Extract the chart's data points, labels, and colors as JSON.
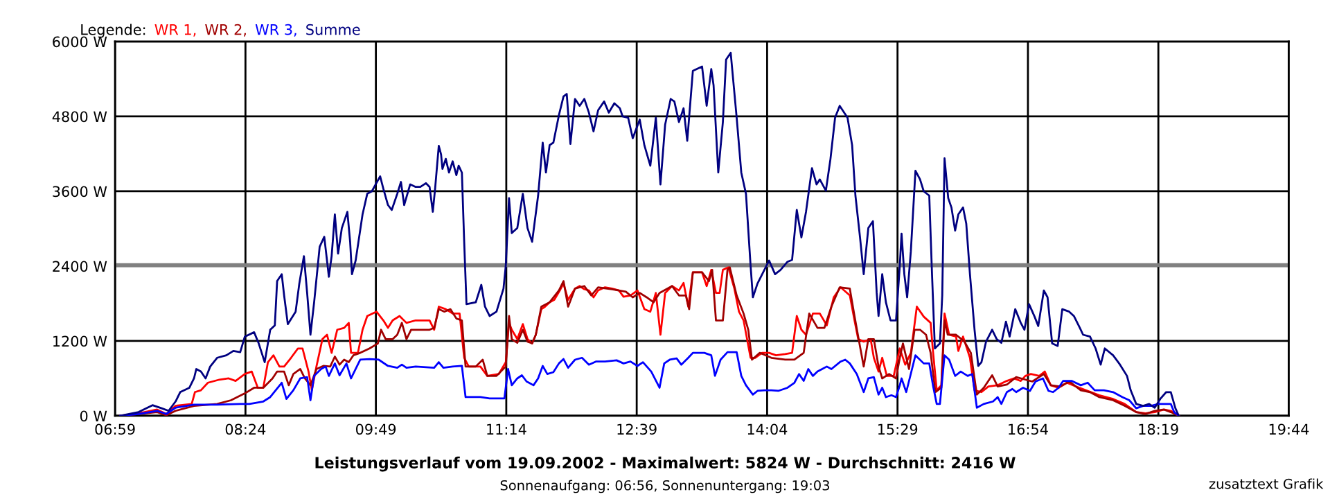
{
  "chart_data": {
    "type": "line",
    "title": "Leistungsverlauf vom 19.09.2002 - Maximalwert: 5824 W - Durchschnitt: 2416 W",
    "subtitle": "Sonnenaufgang: 06:56, Sonnenuntergang: 19:03",
    "legend_title": "Legende:",
    "annotations": [
      "zusatztext Grafik"
    ],
    "series": [
      {
        "name": "WR 1,",
        "color": "#ff0000",
        "x": [
          7.04,
          7.239,
          7.44,
          7.54,
          7.641,
          7.816,
          7.851,
          7.916,
          7.992,
          8.117,
          8.218,
          8.293,
          8.393,
          8.468,
          8.534,
          8.594,
          8.644,
          8.704,
          8.769,
          8.82,
          8.895,
          8.97,
          9.02,
          9.085,
          9.121,
          9.171,
          9.236,
          9.286,
          9.336,
          9.397,
          9.472,
          9.522,
          9.547,
          9.622,
          9.672,
          9.723,
          9.823,
          9.898,
          9.948,
          9.999,
          10.074,
          10.149,
          10.249,
          10.4,
          10.45,
          10.5,
          10.576,
          10.651,
          10.726,
          10.776,
          10.826,
          10.952,
          11.027,
          11.152,
          11.228,
          11.263,
          11.293,
          11.353,
          11.413,
          11.464,
          11.514,
          11.554,
          11.614,
          11.654,
          11.704,
          11.755,
          11.815,
          11.855,
          11.905,
          11.98,
          12.03,
          12.081,
          12.131,
          12.181,
          12.231,
          12.306,
          12.382,
          12.457,
          12.507,
          12.582,
          12.658,
          12.733,
          12.798,
          12.858,
          12.908,
          12.959,
          13.034,
          13.109,
          13.159,
          13.21,
          13.26,
          13.36,
          13.41,
          13.46,
          13.511,
          13.551,
          13.586,
          13.646,
          13.711,
          13.761,
          13.811,
          13.887,
          13.937,
          14.012,
          14.088,
          14.163,
          14.263,
          14.338,
          14.389,
          14.439,
          14.489,
          14.564,
          14.639,
          14.715,
          14.79,
          14.865,
          14.965,
          15.016,
          15.056,
          15.116,
          15.191,
          15.226,
          15.277,
          15.317,
          15.367,
          15.442,
          15.508,
          15.567,
          15.628,
          15.693,
          15.768,
          15.843,
          15.868,
          15.909,
          15.959,
          15.994,
          16.044,
          16.119,
          16.144,
          16.195,
          16.27,
          16.32,
          16.395,
          16.471,
          16.571,
          16.671,
          16.747,
          16.822,
          16.872,
          16.932,
          17.023,
          17.083,
          17.148,
          17.233,
          17.323,
          17.424,
          17.549,
          17.675,
          17.825,
          17.951,
          18.076,
          18.177,
          18.277,
          18.377,
          18.452,
          18.538
        ],
        "values": [
          0,
          40,
          100,
          30,
          160,
          190,
          380,
          410,
          530,
          580,
          600,
          560,
          670,
          710,
          450,
          450,
          860,
          970,
          790,
          790,
          930,
          1080,
          1080,
          710,
          410,
          790,
          1230,
          1300,
          1010,
          1380,
          1410,
          1490,
          1010,
          1010,
          1380,
          1600,
          1670,
          1530,
          1410,
          1530,
          1600,
          1490,
          1530,
          1530,
          1380,
          1750,
          1710,
          1640,
          1640,
          930,
          790,
          790,
          640,
          670,
          860,
          1490,
          1380,
          1230,
          1470,
          1230,
          1160,
          1300,
          1710,
          1750,
          1820,
          1860,
          2010,
          2120,
          1860,
          2040,
          2080,
          2030,
          2010,
          1900,
          2010,
          2060,
          2040,
          2010,
          1910,
          1930,
          2010,
          1710,
          1670,
          1970,
          1300,
          1970,
          2080,
          2010,
          2130,
          1750,
          2300,
          2300,
          2080,
          2340,
          1970,
          1970,
          2340,
          2380,
          2040,
          1670,
          1530,
          930,
          930,
          1010,
          1010,
          970,
          990,
          1010,
          1600,
          1380,
          1300,
          1640,
          1640,
          1450,
          1900,
          2060,
          1930,
          1530,
          1230,
          1190,
          1230,
          930,
          710,
          930,
          640,
          640,
          1080,
          820,
          1010,
          1750,
          1590,
          1490,
          1040,
          410,
          490,
          1640,
          1300,
          1270,
          1040,
          1270,
          930,
          410,
          380,
          470,
          490,
          560,
          600,
          560,
          640,
          670,
          640,
          710,
          490,
          450,
          530,
          470,
          400,
          330,
          270,
          190,
          60,
          40,
          60,
          100,
          80,
          0
        ]
      },
      {
        "name": "WR 2,",
        "color": "#a00000",
        "x": [
          7.04,
          7.239,
          7.44,
          7.54,
          7.641,
          7.841,
          8.092,
          8.243,
          8.393,
          8.494,
          8.594,
          8.694,
          8.744,
          8.82,
          8.87,
          8.92,
          8.995,
          9.045,
          9.106,
          9.171,
          9.246,
          9.321,
          9.371,
          9.422,
          9.472,
          9.522,
          9.572,
          9.647,
          9.748,
          9.838,
          9.873,
          9.923,
          9.999,
          10.049,
          10.099,
          10.149,
          10.199,
          10.275,
          10.4,
          10.45,
          10.5,
          10.561,
          10.626,
          10.691,
          10.751,
          10.791,
          10.902,
          10.977,
          11.027,
          11.127,
          11.228,
          11.263,
          11.293,
          11.353,
          11.413,
          11.464,
          11.514,
          11.554,
          11.614,
          11.704,
          11.805,
          11.855,
          11.905,
          11.98,
          12.081,
          12.156,
          12.231,
          12.382,
          12.532,
          12.607,
          12.683,
          12.758,
          12.833,
          12.898,
          13.034,
          13.109,
          13.184,
          13.22,
          13.26,
          13.36,
          13.435,
          13.47,
          13.511,
          13.586,
          13.636,
          13.661,
          13.736,
          13.811,
          13.862,
          13.902,
          13.987,
          14.113,
          14.263,
          14.363,
          14.464,
          14.524,
          14.614,
          14.689,
          14.765,
          14.855,
          14.965,
          15.016,
          15.066,
          15.116,
          15.166,
          15.226,
          15.277,
          15.317,
          15.392,
          15.467,
          15.508,
          15.542,
          15.608,
          15.668,
          15.728,
          15.793,
          15.843,
          15.894,
          15.959,
          15.994,
          16.029,
          16.119,
          16.21,
          16.28,
          16.345,
          16.42,
          16.511,
          16.571,
          16.671,
          16.772,
          16.872,
          16.947,
          17.073,
          17.148,
          17.248,
          17.349,
          17.474,
          17.574,
          17.675,
          17.825,
          17.951,
          18.076,
          18.177,
          18.277,
          18.377,
          18.452,
          18.538
        ],
        "values": [
          0,
          30,
          60,
          10,
          80,
          160,
          190,
          250,
          360,
          450,
          450,
          600,
          710,
          710,
          490,
          670,
          750,
          600,
          490,
          750,
          800,
          790,
          950,
          820,
          900,
          860,
          970,
          1010,
          1080,
          1160,
          1380,
          1230,
          1230,
          1300,
          1490,
          1230,
          1380,
          1380,
          1380,
          1410,
          1710,
          1670,
          1710,
          1560,
          1530,
          790,
          790,
          900,
          640,
          640,
          790,
          1600,
          1230,
          1170,
          1380,
          1190,
          1160,
          1300,
          1750,
          1820,
          2010,
          2160,
          1750,
          2040,
          2080,
          1930,
          2060,
          2030,
          1990,
          1900,
          1970,
          1900,
          1820,
          1970,
          2080,
          1930,
          1930,
          1710,
          2300,
          2300,
          2160,
          2340,
          1530,
          1530,
          2340,
          2380,
          1930,
          1640,
          1380,
          900,
          1010,
          930,
          900,
          900,
          1010,
          1640,
          1410,
          1410,
          1750,
          2060,
          2040,
          1600,
          1190,
          790,
          1230,
          1230,
          790,
          600,
          670,
          600,
          930,
          1160,
          750,
          1380,
          1380,
          1300,
          1010,
          380,
          450,
          1530,
          1300,
          1300,
          1190,
          1010,
          340,
          450,
          650,
          470,
          500,
          620,
          580,
          550,
          670,
          490,
          470,
          550,
          410,
          380,
          300,
          250,
          160,
          60,
          30,
          80,
          100,
          60,
          0
        ]
      },
      {
        "name": "WR 3,",
        "color": "#0000ff",
        "x": [
          7.04,
          7.239,
          7.44,
          7.54,
          7.641,
          7.841,
          8.092,
          8.343,
          8.443,
          8.594,
          8.669,
          8.794,
          8.845,
          8.92,
          8.995,
          9.07,
          9.106,
          9.146,
          9.221,
          9.271,
          9.306,
          9.371,
          9.422,
          9.497,
          9.547,
          9.597,
          9.647,
          9.748,
          9.848,
          9.948,
          10.049,
          10.099,
          10.149,
          10.249,
          10.45,
          10.5,
          10.55,
          10.651,
          10.751,
          10.791,
          10.952,
          11.052,
          11.213,
          11.253,
          11.293,
          11.353,
          11.403,
          11.454,
          11.529,
          11.579,
          11.629,
          11.679,
          11.745,
          11.805,
          11.855,
          11.905,
          11.98,
          12.056,
          12.131,
          12.206,
          12.306,
          12.432,
          12.507,
          12.582,
          12.658,
          12.718,
          12.808,
          12.898,
          12.949,
          13.009,
          13.084,
          13.134,
          13.21,
          13.26,
          13.385,
          13.46,
          13.5,
          13.561,
          13.636,
          13.736,
          13.786,
          13.837,
          13.912,
          13.962,
          14.037,
          14.113,
          14.188,
          14.288,
          14.363,
          14.414,
          14.464,
          14.514,
          14.564,
          14.614,
          14.664,
          14.715,
          14.765,
          14.865,
          14.915,
          14.965,
          15.041,
          15.116,
          15.166,
          15.226,
          15.277,
          15.317,
          15.357,
          15.417,
          15.467,
          15.508,
          15.527,
          15.578,
          15.678,
          15.768,
          15.828,
          15.868,
          15.909,
          15.944,
          15.994,
          16.044,
          16.109,
          16.17,
          16.245,
          16.295,
          16.345,
          16.42,
          16.521,
          16.571,
          16.611,
          16.671,
          16.731,
          16.772,
          16.847,
          16.922,
          16.982,
          17.063,
          17.123,
          17.173,
          17.233,
          17.283,
          17.374,
          17.474,
          17.549,
          17.625,
          17.725,
          17.825,
          17.926,
          18.001,
          18.076,
          18.151,
          18.237,
          18.317,
          18.377,
          18.452,
          18.488,
          18.538
        ],
        "values": [
          0,
          30,
          80,
          30,
          130,
          180,
          180,
          190,
          190,
          230,
          300,
          530,
          270,
          410,
          600,
          620,
          250,
          640,
          750,
          790,
          640,
          840,
          650,
          840,
          600,
          750,
          900,
          910,
          900,
          800,
          770,
          820,
          770,
          790,
          770,
          860,
          770,
          790,
          800,
          300,
          300,
          280,
          280,
          750,
          490,
          600,
          650,
          550,
          490,
          600,
          800,
          670,
          700,
          840,
          910,
          770,
          900,
          930,
          820,
          870,
          870,
          890,
          840,
          870,
          800,
          860,
          710,
          450,
          840,
          900,
          920,
          820,
          930,
          1010,
          1010,
          970,
          640,
          900,
          1020,
          1020,
          640,
          490,
          340,
          400,
          410,
          410,
          400,
          450,
          530,
          670,
          560,
          750,
          640,
          710,
          750,
          790,
          750,
          870,
          900,
          840,
          670,
          380,
          600,
          620,
          340,
          450,
          300,
          330,
          300,
          490,
          600,
          380,
          970,
          840,
          840,
          490,
          190,
          190,
          970,
          900,
          640,
          710,
          640,
          670,
          130,
          190,
          230,
          300,
          190,
          380,
          430,
          380,
          450,
          400,
          550,
          600,
          400,
          380,
          450,
          560,
          560,
          490,
          530,
          410,
          410,
          380,
          300,
          250,
          120,
          160,
          160,
          190,
          190,
          190,
          60,
          0
        ]
      },
      {
        "name": "Summe",
        "color": "#000080",
        "x": [
          7.04,
          7.239,
          7.39,
          7.49,
          7.565,
          7.641,
          7.691,
          7.791,
          7.841,
          7.866,
          7.916,
          7.967,
          8.017,
          8.092,
          8.193,
          8.268,
          8.343,
          8.393,
          8.494,
          8.544,
          8.609,
          8.669,
          8.719,
          8.744,
          8.794,
          8.82,
          8.86,
          8.945,
          8.985,
          9.035,
          9.07,
          9.106,
          9.146,
          9.206,
          9.256,
          9.306,
          9.336,
          9.371,
          9.406,
          9.447,
          9.507,
          9.537,
          9.557,
          9.597,
          9.672,
          9.723,
          9.773,
          9.863,
          9.898,
          9.948,
          9.989,
          10.049,
          10.089,
          10.124,
          10.189,
          10.249,
          10.3,
          10.36,
          10.4,
          10.435,
          10.46,
          10.5,
          10.525,
          10.54,
          10.576,
          10.611,
          10.651,
          10.691,
          10.716,
          10.751,
          10.776,
          10.801,
          10.902,
          10.962,
          11.002,
          11.052,
          11.127,
          11.203,
          11.228,
          11.263,
          11.293,
          11.353,
          11.413,
          11.464,
          11.514,
          11.579,
          11.629,
          11.664,
          11.704,
          11.745,
          11.805,
          11.855,
          11.89,
          11.93,
          11.98,
          12.03,
          12.081,
          12.131,
          12.181,
          12.231,
          12.296,
          12.347,
          12.407,
          12.467,
          12.497,
          12.557,
          12.607,
          12.683,
          12.733,
          12.798,
          12.858,
          12.908,
          12.959,
          13.019,
          13.059,
          13.109,
          13.159,
          13.199,
          13.26,
          13.36,
          13.41,
          13.46,
          13.485,
          13.536,
          13.586,
          13.621,
          13.671,
          13.736,
          13.786,
          13.837,
          13.887,
          13.912,
          13.962,
          14.037,
          14.088,
          14.153,
          14.213,
          14.288,
          14.338,
          14.389,
          14.439,
          14.489,
          14.554,
          14.604,
          14.639,
          14.705,
          14.755,
          14.805,
          14.855,
          14.94,
          14.99,
          15.026,
          15.076,
          15.116,
          15.166,
          15.216,
          15.257,
          15.277,
          15.317,
          15.357,
          15.407,
          15.467,
          15.508,
          15.527,
          15.557,
          15.588,
          15.628,
          15.678,
          15.728,
          15.768,
          15.828,
          15.858,
          15.889,
          15.944,
          15.969,
          15.994,
          16.034,
          16.069,
          16.109,
          16.144,
          16.195,
          16.23,
          16.27,
          16.32,
          16.36,
          16.395,
          16.445,
          16.511,
          16.561,
          16.611,
          16.661,
          16.701,
          16.762,
          16.822,
          16.862,
          16.912,
          16.972,
          17.012,
          17.073,
          17.113,
          17.163,
          17.223,
          17.273,
          17.348,
          17.399,
          17.464,
          17.499,
          17.574,
          17.635,
          17.69,
          17.735,
          17.825,
          17.9,
          17.976,
          18.016,
          18.076,
          18.151,
          18.217,
          18.277,
          18.337,
          18.402,
          18.452,
          18.502,
          18.538
        ],
        "values": [
          0,
          60,
          170,
          120,
          80,
          230,
          380,
          450,
          600,
          750,
          710,
          600,
          790,
          930,
          970,
          1040,
          1020,
          1270,
          1340,
          1160,
          860,
          1380,
          1450,
          2160,
          2270,
          1930,
          1470,
          1670,
          2120,
          2560,
          1970,
          1300,
          1820,
          2710,
          2870,
          2230,
          2560,
          3230,
          2600,
          3010,
          3270,
          2790,
          2270,
          2490,
          3230,
          3560,
          3600,
          3840,
          3640,
          3380,
          3300,
          3560,
          3750,
          3380,
          3710,
          3670,
          3670,
          3730,
          3670,
          3270,
          3640,
          4330,
          4190,
          3960,
          4120,
          3900,
          4080,
          3860,
          4010,
          3900,
          2790,
          1790,
          1820,
          2100,
          1750,
          1600,
          1670,
          2040,
          2410,
          3490,
          2930,
          3010,
          3560,
          3010,
          2790,
          3530,
          4380,
          3900,
          4340,
          4380,
          4820,
          5120,
          5160,
          4360,
          5080,
          4970,
          5080,
          4860,
          4560,
          4900,
          5040,
          4860,
          5010,
          4930,
          4800,
          4780,
          4450,
          4750,
          4340,
          4010,
          4780,
          3710,
          4670,
          5080,
          5040,
          4710,
          4930,
          4410,
          5530,
          5600,
          4970,
          5560,
          5300,
          3900,
          4710,
          5710,
          5820,
          4780,
          3900,
          3560,
          2410,
          1900,
          2120,
          2340,
          2490,
          2270,
          2340,
          2470,
          2500,
          3300,
          2860,
          3270,
          3970,
          3710,
          3790,
          3610,
          4120,
          4780,
          4970,
          4780,
          4340,
          3530,
          2860,
          2270,
          3010,
          3120,
          1970,
          1600,
          2270,
          1820,
          1530,
          1530,
          2410,
          2920,
          2270,
          1900,
          2640,
          3930,
          3790,
          3600,
          3530,
          2270,
          1080,
          1160,
          1930,
          4130,
          3490,
          3340,
          2970,
          3230,
          3340,
          3080,
          2270,
          1380,
          800,
          860,
          1190,
          1380,
          1230,
          1170,
          1510,
          1270,
          1710,
          1490,
          1380,
          1790,
          1590,
          1440,
          2010,
          1900,
          1160,
          1120,
          1710,
          1670,
          1600,
          1410,
          1300,
          1270,
          1080,
          820,
          1080,
          970,
          820,
          640,
          410,
          190,
          160,
          190,
          130,
          270,
          380,
          380,
          120,
          0
        ]
      }
    ],
    "xlim": [
      6.9833,
      19.7333
    ],
    "xticks": [
      {
        "value": 6.9833,
        "label": "06:59"
      },
      {
        "value": 8.4,
        "label": "08:24"
      },
      {
        "value": 9.8167,
        "label": "09:49"
      },
      {
        "value": 11.2333,
        "label": "11:14"
      },
      {
        "value": 12.65,
        "label": "12:39"
      },
      {
        "value": 14.0667,
        "label": "14:04"
      },
      {
        "value": 15.4833,
        "label": "15:29"
      },
      {
        "value": 16.9,
        "label": "16:54"
      },
      {
        "value": 18.3167,
        "label": "18:19"
      },
      {
        "value": 19.7333,
        "label": "19:44"
      }
    ],
    "ylim": [
      0,
      6000
    ],
    "yticks": [
      {
        "value": 0,
        "label": "0 W"
      },
      {
        "value": 1200,
        "label": "1200 W"
      },
      {
        "value": 2400,
        "label": "2400 W"
      },
      {
        "value": 3600,
        "label": "3600 W"
      },
      {
        "value": 4800,
        "label": "4800 W"
      },
      {
        "value": 6000,
        "label": "6000 W"
      }
    ],
    "ref_lines": [
      {
        "axis": "y",
        "value": 2416,
        "color": "#808080"
      }
    ],
    "grid": true,
    "legend": "top left",
    "line_style": "solid",
    "marker": "none"
  }
}
